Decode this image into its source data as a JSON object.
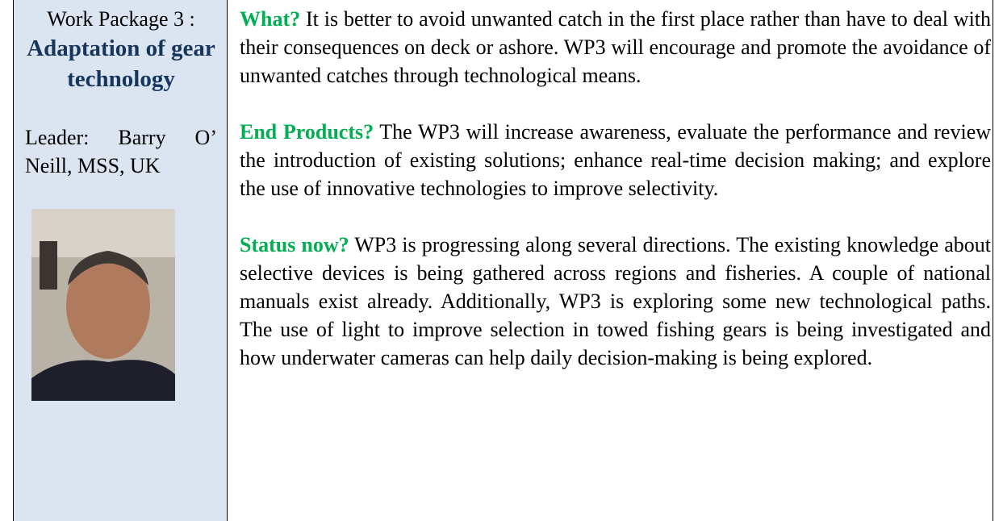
{
  "left": {
    "work_package": "Work Package 3 :",
    "title": "Adaptation of gear technology",
    "leader": "Leader: Barry O’ Neill, MSS, UK"
  },
  "sections": [
    {
      "heading": "What?",
      "text": "It is better to avoid unwanted catch in the first place rather than have to deal with their consequences on deck or ashore. WP3 will encourage and promote the avoidance of unwanted catches through technological means."
    },
    {
      "heading": "End Products?",
      "text": "The WP3 will increase awareness, evaluate the performance and review the introduction of existing solutions; enhance real-time decision making; and explore the use of innovative technologies to improve selectivity."
    },
    {
      "heading": "Status now?",
      "text": "WP3 is progressing along several directions. The existing knowledge about selective devices is being gathered across regions and fisheries. A couple of national manuals exist already. Additionally, WP3 is exploring some new technological paths. The use of light to improve selection in towed fishing gears is being investigated and how underwater cameras can help daily decision-making is being explored."
    }
  ]
}
